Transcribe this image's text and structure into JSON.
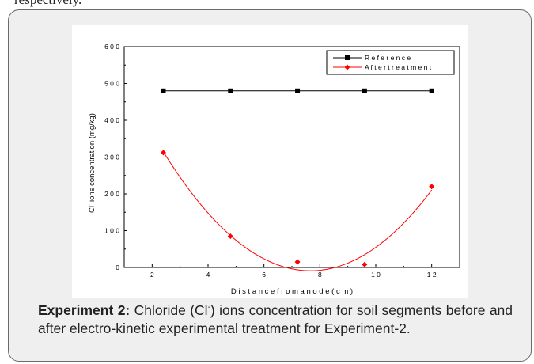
{
  "page": {
    "top_fragment": "respectively."
  },
  "caption": {
    "label": "Experiment 2:",
    "text_before_sup": " Chloride (Cl",
    "sup": "-",
    "text_after_sup": ") ions concentration for soil segments before and after electro-kinetic experimental treatment for Experiment-2."
  },
  "chart_data": {
    "type": "line",
    "title": "",
    "xlabel": "D i s t a n c e   f r o m   a n o d e   ( c m )",
    "ylabel_prefix": "Cl",
    "ylabel_sup": "-",
    "ylabel_rest": " ions concentration (mg/kg)",
    "xlim": [
      1,
      13
    ],
    "ylim": [
      0,
      600
    ],
    "xticks": [
      2,
      4,
      6,
      8,
      10,
      12
    ],
    "yticks": [
      0,
      100,
      200,
      300,
      400,
      500,
      600
    ],
    "legend_position": "top-right",
    "series": [
      {
        "name": "R e f e r e n c e",
        "color": "#000000",
        "marker": "square",
        "x": [
          2.4,
          4.8,
          7.2,
          9.6,
          12
        ],
        "y": [
          480,
          480,
          480,
          480,
          480
        ]
      },
      {
        "name": "A f t e r  t r e a t m e n t",
        "color": "#ff0000",
        "marker": "diamond",
        "line": "polynomial-fit",
        "x": [
          2.4,
          4.8,
          7.2,
          9.6,
          12
        ],
        "y": [
          312,
          85,
          15,
          8,
          220
        ]
      }
    ]
  }
}
